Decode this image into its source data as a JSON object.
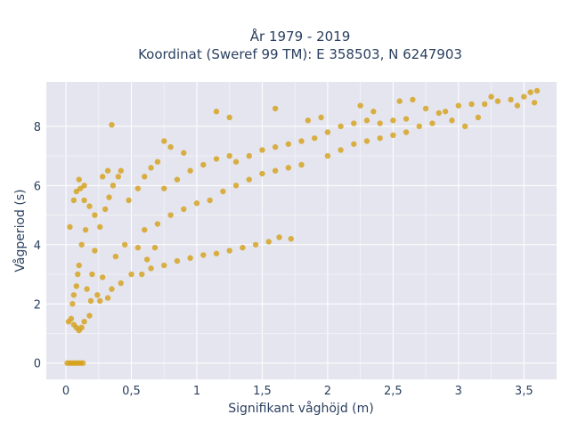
{
  "chart_data": {
    "type": "scatter",
    "title_line1": "År 1979 - 2019",
    "title_line2": "Koordinat (Sweref 99 TM): E 358503, N 6247903",
    "xlabel": "Signifikant våghöjd (m)",
    "ylabel": "Vågperiod (s)",
    "xlim": [
      -0.15,
      3.75
    ],
    "ylim": [
      -0.55,
      9.5
    ],
    "x_ticks": [
      0,
      0.5,
      1,
      1.5,
      2,
      2.5,
      3,
      3.5
    ],
    "x_tick_labels": [
      "0",
      "0,5",
      "1",
      "1,5",
      "2",
      "2,5",
      "3",
      "3,5"
    ],
    "y_ticks": [
      0,
      2,
      4,
      6,
      8
    ],
    "y_tick_labels": [
      "0",
      "2",
      "4",
      "6",
      "8"
    ],
    "grid": true,
    "legend": "none",
    "marker_color": "#D4A017",
    "bg_color": "#E5E5EF",
    "series": [
      {
        "points": [
          [
            0.01,
            0.0
          ],
          [
            0.03,
            0.0
          ],
          [
            0.05,
            0.0
          ],
          [
            0.07,
            0.0
          ],
          [
            0.09,
            0.0
          ],
          [
            0.11,
            0.0
          ],
          [
            0.13,
            0.0
          ],
          [
            0.02,
            1.4
          ],
          [
            0.04,
            1.5
          ],
          [
            0.06,
            1.3
          ],
          [
            0.08,
            1.2
          ],
          [
            0.1,
            1.1
          ],
          [
            0.12,
            1.2
          ],
          [
            0.14,
            1.4
          ],
          [
            0.05,
            2.0
          ],
          [
            0.08,
            2.6
          ],
          [
            0.1,
            3.3
          ],
          [
            0.12,
            4.0
          ],
          [
            0.15,
            4.5
          ],
          [
            0.09,
            3.0
          ],
          [
            0.06,
            2.3
          ],
          [
            0.03,
            4.6
          ],
          [
            0.06,
            5.5
          ],
          [
            0.08,
            5.8
          ],
          [
            0.11,
            5.9
          ],
          [
            0.14,
            5.5
          ],
          [
            0.19,
            2.1
          ],
          [
            0.24,
            2.3
          ],
          [
            0.2,
            3.0
          ],
          [
            0.22,
            3.8
          ],
          [
            0.26,
            4.6
          ],
          [
            0.3,
            5.2
          ],
          [
            0.33,
            5.6
          ],
          [
            0.36,
            6.0
          ],
          [
            0.4,
            6.3
          ],
          [
            0.35,
            2.5
          ],
          [
            0.42,
            2.7
          ],
          [
            0.5,
            3.0
          ],
          [
            0.55,
            3.9
          ],
          [
            0.6,
            4.5
          ],
          [
            0.48,
            5.5
          ],
          [
            0.55,
            5.9
          ],
          [
            0.6,
            6.3
          ],
          [
            0.65,
            6.6
          ],
          [
            0.7,
            6.8
          ],
          [
            0.35,
            8.05
          ],
          [
            0.32,
            6.5
          ],
          [
            0.28,
            6.3
          ],
          [
            0.42,
            6.5
          ],
          [
            0.65,
            3.2
          ],
          [
            0.75,
            3.3
          ],
          [
            0.85,
            3.45
          ],
          [
            0.95,
            3.55
          ],
          [
            1.05,
            3.65
          ],
          [
            1.15,
            3.7
          ],
          [
            1.25,
            3.8
          ],
          [
            1.35,
            3.9
          ],
          [
            1.45,
            4.0
          ],
          [
            1.55,
            4.1
          ],
          [
            1.63,
            4.25
          ],
          [
            1.72,
            4.2
          ],
          [
            0.7,
            4.7
          ],
          [
            0.8,
            5.0
          ],
          [
            0.9,
            5.2
          ],
          [
            1.0,
            5.4
          ],
          [
            1.1,
            5.5
          ],
          [
            0.75,
            5.9
          ],
          [
            0.85,
            6.2
          ],
          [
            0.95,
            6.5
          ],
          [
            1.05,
            6.7
          ],
          [
            1.15,
            6.9
          ],
          [
            1.25,
            7.0
          ],
          [
            0.9,
            7.1
          ],
          [
            0.8,
            7.3
          ],
          [
            0.75,
            7.5
          ],
          [
            1.2,
            5.8
          ],
          [
            1.3,
            6.0
          ],
          [
            1.4,
            6.2
          ],
          [
            1.5,
            6.4
          ],
          [
            1.6,
            6.5
          ],
          [
            1.7,
            6.6
          ],
          [
            1.8,
            6.7
          ],
          [
            1.3,
            6.8
          ],
          [
            1.4,
            7.0
          ],
          [
            1.5,
            7.2
          ],
          [
            1.6,
            7.3
          ],
          [
            1.7,
            7.4
          ],
          [
            1.8,
            7.5
          ],
          [
            1.9,
            7.6
          ],
          [
            2.0,
            7.0
          ],
          [
            2.1,
            7.2
          ],
          [
            2.2,
            7.4
          ],
          [
            2.3,
            7.5
          ],
          [
            2.4,
            7.6
          ],
          [
            2.5,
            7.7
          ],
          [
            2.6,
            7.8
          ],
          [
            2.0,
            7.8
          ],
          [
            2.1,
            8.0
          ],
          [
            2.2,
            8.1
          ],
          [
            2.3,
            8.2
          ],
          [
            2.4,
            8.1
          ],
          [
            2.5,
            8.2
          ],
          [
            2.6,
            8.25
          ],
          [
            2.7,
            8.0
          ],
          [
            2.8,
            8.1
          ],
          [
            2.9,
            8.5
          ],
          [
            3.0,
            8.7
          ],
          [
            3.1,
            8.75
          ],
          [
            3.2,
            8.75
          ],
          [
            3.3,
            8.85
          ],
          [
            3.05,
            8.0
          ],
          [
            3.15,
            8.3
          ],
          [
            3.4,
            8.9
          ],
          [
            3.5,
            9.0
          ],
          [
            3.55,
            9.15
          ],
          [
            3.6,
            9.2
          ],
          [
            3.58,
            8.8
          ],
          [
            1.15,
            8.5
          ],
          [
            1.6,
            8.6
          ],
          [
            1.85,
            8.2
          ],
          [
            1.95,
            8.3
          ],
          [
            2.25,
            8.7
          ],
          [
            2.55,
            8.85
          ],
          [
            2.65,
            8.9
          ],
          [
            2.75,
            8.6
          ],
          [
            2.85,
            8.45
          ],
          [
            2.95,
            8.2
          ],
          [
            3.25,
            9.0
          ],
          [
            3.45,
            8.7
          ],
          [
            2.35,
            8.5
          ],
          [
            1.25,
            8.3
          ],
          [
            0.58,
            3.0
          ],
          [
            0.62,
            3.5
          ],
          [
            0.68,
            3.9
          ],
          [
            0.45,
            4.0
          ],
          [
            0.38,
            3.6
          ],
          [
            0.28,
            2.9
          ],
          [
            0.18,
            1.6
          ],
          [
            0.16,
            2.5
          ],
          [
            0.26,
            2.1
          ],
          [
            0.32,
            2.2
          ],
          [
            0.22,
            5.0
          ],
          [
            0.18,
            5.3
          ],
          [
            0.14,
            6.0
          ],
          [
            0.1,
            6.2
          ]
        ]
      }
    ]
  }
}
